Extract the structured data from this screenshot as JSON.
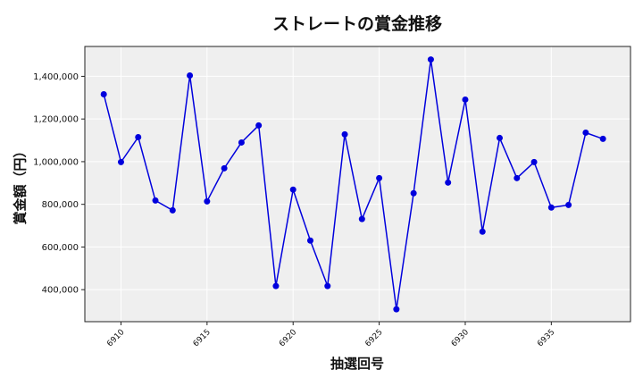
{
  "chart_data": {
    "type": "line",
    "title": "ストレートの賞金推移",
    "xlabel": "抽選回号",
    "ylabel": "賞金額（円）",
    "x": [
      6909,
      6910,
      6911,
      6912,
      6913,
      6914,
      6915,
      6916,
      6917,
      6918,
      6919,
      6920,
      6921,
      6922,
      6923,
      6924,
      6925,
      6926,
      6927,
      6928,
      6929,
      6930,
      6931,
      6932,
      6933,
      6934,
      6935,
      6936,
      6937,
      6938
    ],
    "series": [
      {
        "name": "ストレート",
        "color": "#0000dd",
        "marker": "circle",
        "values": [
          1316000,
          998000,
          1115000,
          818000,
          772000,
          1404000,
          814000,
          969000,
          1090000,
          1170000,
          417000,
          869000,
          630000,
          417000,
          1128000,
          731000,
          923000,
          308000,
          852000,
          1479000,
          902000,
          1291000,
          672000,
          1111000,
          923000,
          998000,
          785000,
          797000,
          1136000,
          1107000
        ]
      }
    ],
    "xticks": [
      6910,
      6915,
      6920,
      6925,
      6930,
      6935
    ],
    "yticks": [
      400000,
      600000,
      800000,
      1000000,
      1200000,
      1400000
    ],
    "ytick_labels": [
      "400,000",
      "600,000",
      "800,000",
      "1,000,000",
      "1,200,000",
      "1,400,000"
    ],
    "xlim": [
      6907.9,
      6939.6
    ],
    "ylim": [
      250000,
      1540000
    ],
    "grid": true,
    "legend": null,
    "background": "#efefef"
  }
}
